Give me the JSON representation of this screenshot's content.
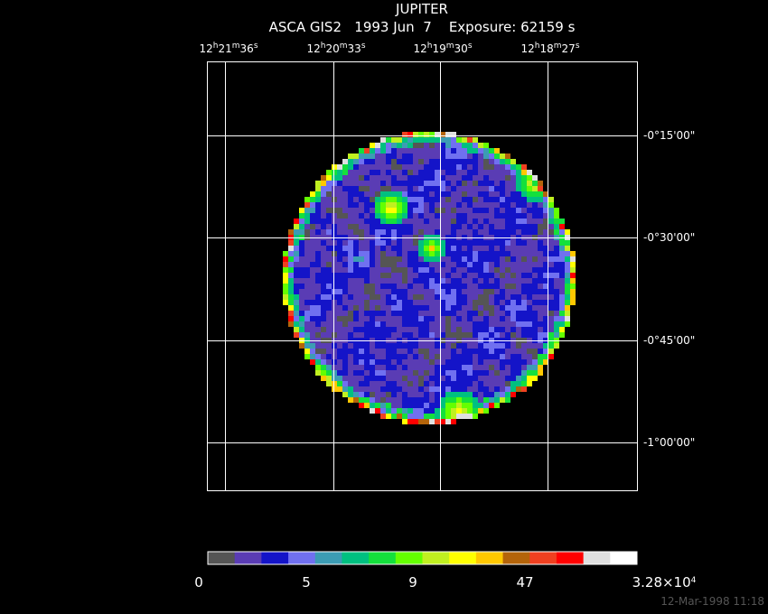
{
  "title": "JUPITER",
  "subtitle": "ASCA GIS2   1993 Jun  7    Exposure: 62159 s",
  "ra_units": [
    "h",
    "m",
    "s"
  ],
  "ra_labels": [
    {
      "parts": [
        "12",
        "21",
        "36"
      ]
    },
    {
      "parts": [
        "12",
        "20",
        "33"
      ]
    },
    {
      "parts": [
        "12",
        "19",
        "30"
      ]
    },
    {
      "parts": [
        "12",
        "18",
        "27"
      ]
    }
  ],
  "dec_labels": [
    "-0°15'00\"",
    "-0°30'00\"",
    "-0°45'00\"",
    "-1°00'00\""
  ],
  "colorbar": {
    "colors": [
      "#555555",
      "#5a3cb4",
      "#1414c8",
      "#7070f0",
      "#3c9cb4",
      "#00c080",
      "#14e03c",
      "#64ff00",
      "#c0f020",
      "#ffff00",
      "#ffc800",
      "#b4640a",
      "#f04020",
      "#ff0000",
      "#e0e0e0",
      "#ffffff"
    ],
    "labels": [
      {
        "text": "0"
      },
      {
        "text": "5"
      },
      {
        "text": "9"
      },
      {
        "text": "47"
      },
      {
        "text": "3.28×10",
        "exponent": "4"
      }
    ]
  },
  "footer": "12-Mar-1998 11:18"
}
